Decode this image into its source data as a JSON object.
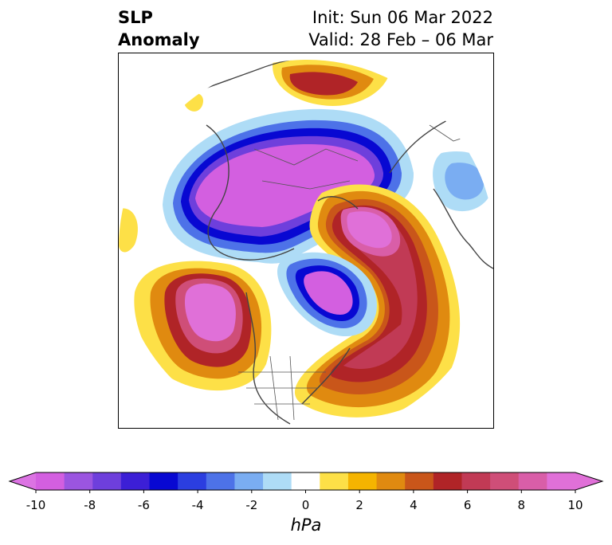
{
  "title": {
    "line1": "SLP",
    "line2": "Anomaly",
    "init": "Init: Sun 06 Mar 2022",
    "valid": "Valid: 28 Feb – 06 Mar"
  },
  "map": {
    "projection": "north-polar-stereographic",
    "features": [
      "coastlines",
      "country-borders",
      "us-state-borders"
    ],
    "field": "sea-level-pressure-anomaly",
    "features_visible": [
      {
        "name": "eurasia-arctic-low",
        "sign": "negative",
        "peak_hpa": -10
      },
      {
        "name": "north-pacific-high",
        "sign": "positive",
        "peak_hpa": 10
      },
      {
        "name": "canada-low",
        "sign": "negative",
        "peak_hpa": -10
      },
      {
        "name": "greenland-high",
        "sign": "positive",
        "peak_hpa": 10
      },
      {
        "name": "north-atlantic-high",
        "sign": "positive",
        "peak_hpa": 8
      },
      {
        "name": "europe-low",
        "sign": "negative",
        "peak_hpa": -2
      },
      {
        "name": "arctic-ocean-high",
        "sign": "positive",
        "peak_hpa": 6
      }
    ]
  },
  "colorbar": {
    "unit": "hPa",
    "extend": "both",
    "ticks": [
      "-10",
      "-8",
      "-6",
      "-4",
      "-2",
      "0",
      "2",
      "4",
      "6",
      "8",
      "10"
    ],
    "colors": [
      "#d35fe0",
      "#9b55e0",
      "#6e3fdc",
      "#3c1fd6",
      "#0808d2",
      "#2b3ee0",
      "#4d72e8",
      "#7aadf2",
      "#aedcf6",
      "#ffffff",
      "#fde047",
      "#f5b400",
      "#e08a10",
      "#c9561a",
      "#b02427",
      "#c13a55",
      "#cf4e78",
      "#d95ea8",
      "#e070d8"
    ],
    "extend_low_color": "#dc73e3",
    "extend_high_color": "#e070d8"
  }
}
